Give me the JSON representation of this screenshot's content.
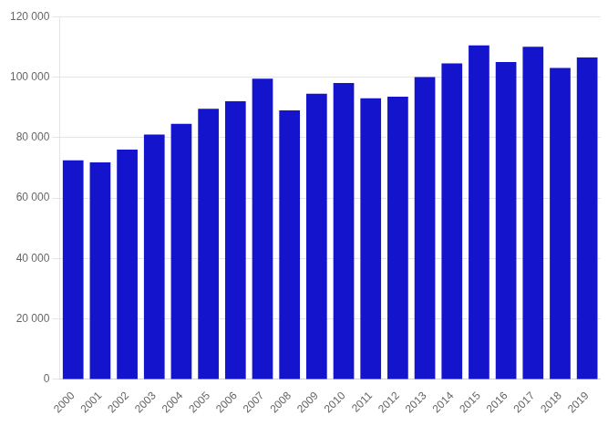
{
  "chart_data": {
    "type": "bar",
    "categories": [
      "2000",
      "2001",
      "2002",
      "2003",
      "2004",
      "2005",
      "2006",
      "2007",
      "2008",
      "2009",
      "2010",
      "2011",
      "2012",
      "2013",
      "2014",
      "2015",
      "2016",
      "2017",
      "2018",
      "2019"
    ],
    "values": [
      72500,
      71800,
      76000,
      81000,
      84500,
      89500,
      92000,
      99500,
      89000,
      94500,
      98000,
      93000,
      93500,
      100000,
      104500,
      110500,
      105000,
      110000,
      103000,
      106500
    ],
    "color": "#1414CC",
    "ylim": [
      0,
      120000
    ],
    "yticks": [
      0,
      {
        "value": 20000,
        "label": "20 000"
      },
      {
        "value": 40000,
        "label": "40 000"
      },
      {
        "value": 60000,
        "label": "60 000"
      },
      {
        "value": 80000,
        "label": "80 000"
      },
      {
        "value": 100000,
        "label": "100 000"
      },
      {
        "value": 120000,
        "label": "120 000"
      }
    ],
    "grid": true
  }
}
